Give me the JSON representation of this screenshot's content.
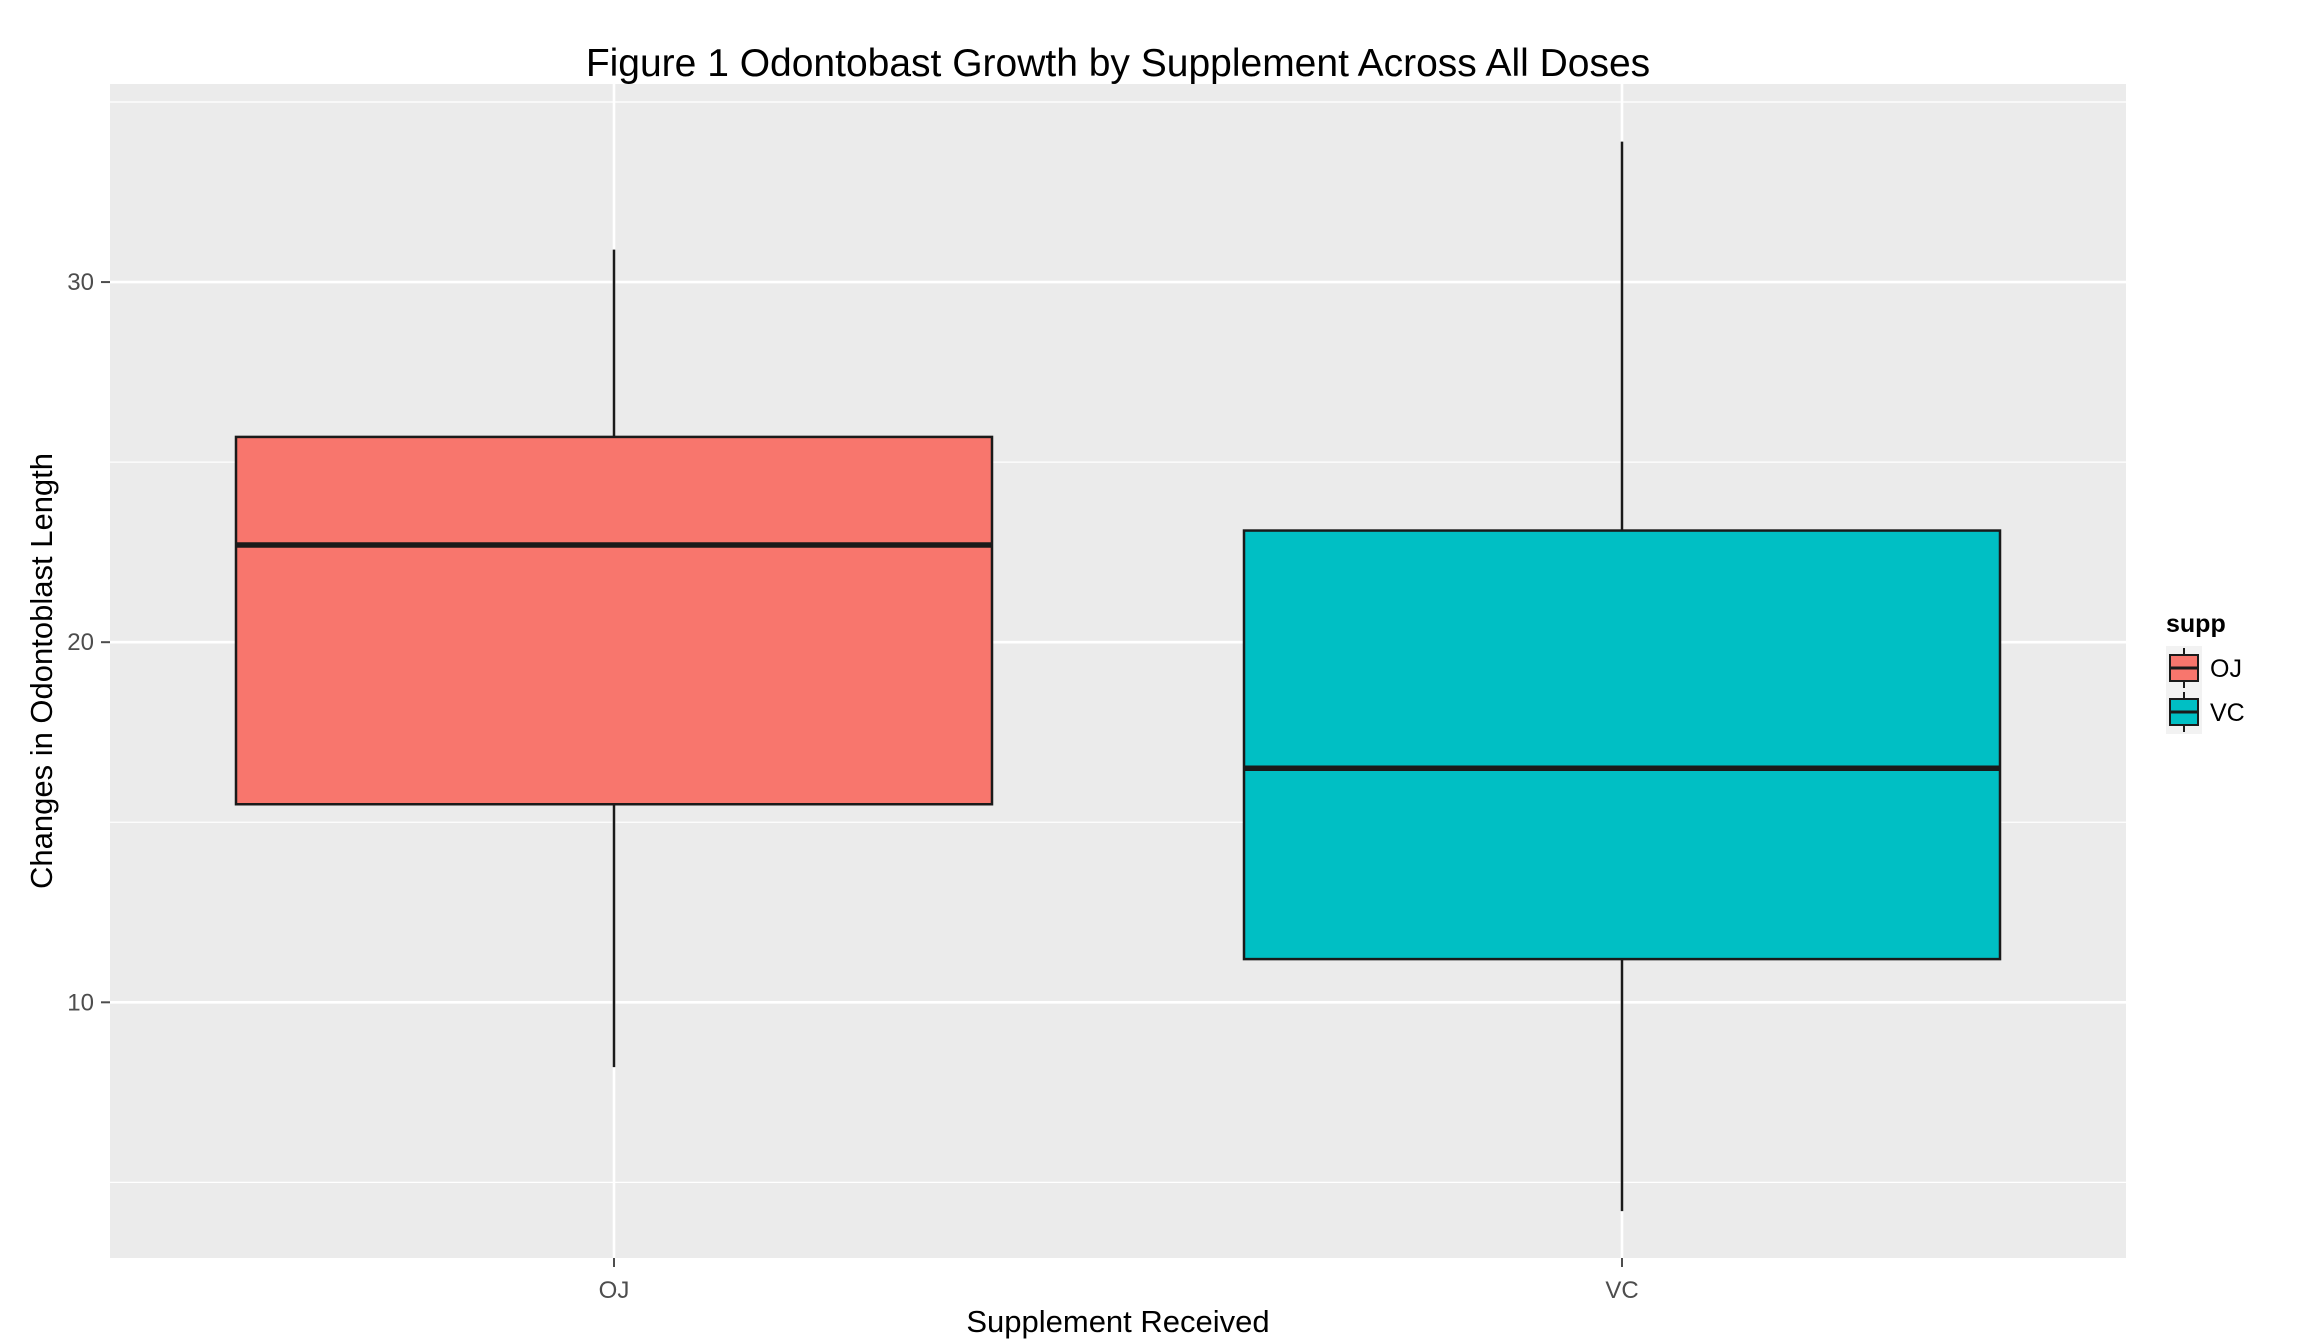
{
  "chart_data": {
    "type": "boxplot",
    "title": "Figure 1 Odontobast Growth by Supplement Across All Doses",
    "xlabel": "Supplement Received",
    "ylabel": "Changes in Odontoblast Length",
    "categories": [
      "OJ",
      "VC"
    ],
    "y_ticks": [
      10,
      20,
      30
    ],
    "ylim": [
      2.9,
      35.5
    ],
    "grid": true,
    "legend": {
      "title": "supp",
      "position": "right",
      "entries": [
        "OJ",
        "VC"
      ]
    },
    "boxes": [
      {
        "category": "OJ",
        "min": 8.2,
        "q1": 15.5,
        "median": 22.7,
        "q3": 25.7,
        "max": 30.9,
        "color": "#F8766D"
      },
      {
        "category": "VC",
        "min": 4.2,
        "q1": 11.2,
        "median": 16.5,
        "q3": 23.1,
        "max": 33.9,
        "color": "#00BFC4"
      }
    ],
    "panel_color": "#EBEBEB",
    "grid_color": "#FFFFFF"
  }
}
